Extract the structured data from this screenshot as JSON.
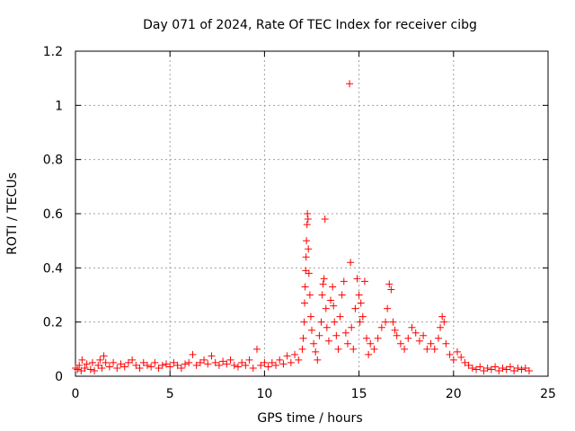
{
  "chart_data": {
    "type": "scatter",
    "title": "Day 071 of 2024, Rate Of TEC Index for receiver cibg",
    "xlabel": "GPS time / hours",
    "ylabel": "ROTI / TECUs",
    "xlim": [
      0,
      25
    ],
    "ylim": [
      0,
      1.2
    ],
    "xticks": [
      0,
      5,
      10,
      15,
      20,
      25
    ],
    "xtick_labels": [
      "0",
      "5",
      "10",
      "15",
      "20",
      "25"
    ],
    "yticks": [
      0,
      0.2,
      0.4,
      0.6,
      0.8,
      1,
      1.2
    ],
    "ytick_labels": [
      "0",
      "0.2",
      "0.4",
      "0.6",
      "0.8",
      "1",
      "1.2"
    ],
    "grid": true,
    "marker": "+",
    "color": "#ff0000",
    "series": [
      {
        "points": [
          [
            0.0,
            0.03
          ],
          [
            0.1,
            0.025
          ],
          [
            0.2,
            0.04
          ],
          [
            0.3,
            0.02
          ],
          [
            0.35,
            0.06
          ],
          [
            0.5,
            0.03
          ],
          [
            0.6,
            0.045
          ],
          [
            0.8,
            0.025
          ],
          [
            0.9,
            0.05
          ],
          [
            1.0,
            0.02
          ],
          [
            1.2,
            0.04
          ],
          [
            1.3,
            0.06
          ],
          [
            1.4,
            0.03
          ],
          [
            1.5,
            0.075
          ],
          [
            1.6,
            0.05
          ],
          [
            1.8,
            0.035
          ],
          [
            2.0,
            0.05
          ],
          [
            2.2,
            0.03
          ],
          [
            2.4,
            0.045
          ],
          [
            2.6,
            0.035
          ],
          [
            2.8,
            0.05
          ],
          [
            3.0,
            0.06
          ],
          [
            3.2,
            0.04
          ],
          [
            3.4,
            0.03
          ],
          [
            3.6,
            0.05
          ],
          [
            3.8,
            0.04
          ],
          [
            4.0,
            0.035
          ],
          [
            4.2,
            0.05
          ],
          [
            4.4,
            0.03
          ],
          [
            4.6,
            0.04
          ],
          [
            4.8,
            0.045
          ],
          [
            5.0,
            0.035
          ],
          [
            5.2,
            0.05
          ],
          [
            5.4,
            0.04
          ],
          [
            5.6,
            0.03
          ],
          [
            5.8,
            0.045
          ],
          [
            6.0,
            0.05
          ],
          [
            6.2,
            0.08
          ],
          [
            6.4,
            0.04
          ],
          [
            6.6,
            0.05
          ],
          [
            6.8,
            0.06
          ],
          [
            7.0,
            0.045
          ],
          [
            7.2,
            0.075
          ],
          [
            7.4,
            0.05
          ],
          [
            7.6,
            0.04
          ],
          [
            7.8,
            0.055
          ],
          [
            8.0,
            0.045
          ],
          [
            8.2,
            0.06
          ],
          [
            8.4,
            0.04
          ],
          [
            8.6,
            0.035
          ],
          [
            8.8,
            0.05
          ],
          [
            9.0,
            0.04
          ],
          [
            9.2,
            0.06
          ],
          [
            9.4,
            0.03
          ],
          [
            9.6,
            0.1
          ],
          [
            9.8,
            0.04
          ],
          [
            10.0,
            0.05
          ],
          [
            10.2,
            0.035
          ],
          [
            10.4,
            0.05
          ],
          [
            10.6,
            0.04
          ],
          [
            10.8,
            0.06
          ],
          [
            11.0,
            0.045
          ],
          [
            11.2,
            0.075
          ],
          [
            11.4,
            0.05
          ],
          [
            11.6,
            0.08
          ],
          [
            11.8,
            0.06
          ],
          [
            12.0,
            0.1
          ],
          [
            12.05,
            0.14
          ],
          [
            12.1,
            0.2
          ],
          [
            12.12,
            0.27
          ],
          [
            12.15,
            0.33
          ],
          [
            12.18,
            0.39
          ],
          [
            12.2,
            0.44
          ],
          [
            12.22,
            0.5
          ],
          [
            12.25,
            0.56
          ],
          [
            12.27,
            0.6
          ],
          [
            12.3,
            0.58
          ],
          [
            12.32,
            0.47
          ],
          [
            12.35,
            0.38
          ],
          [
            12.4,
            0.3
          ],
          [
            12.45,
            0.22
          ],
          [
            12.5,
            0.17
          ],
          [
            12.6,
            0.12
          ],
          [
            12.7,
            0.09
          ],
          [
            12.8,
            0.06
          ],
          [
            12.9,
            0.15
          ],
          [
            13.0,
            0.2
          ],
          [
            13.05,
            0.3
          ],
          [
            13.1,
            0.34
          ],
          [
            13.15,
            0.36
          ],
          [
            13.2,
            0.58
          ],
          [
            13.25,
            0.25
          ],
          [
            13.3,
            0.18
          ],
          [
            13.4,
            0.13
          ],
          [
            13.5,
            0.28
          ],
          [
            13.6,
            0.33
          ],
          [
            13.65,
            0.26
          ],
          [
            13.7,
            0.2
          ],
          [
            13.8,
            0.15
          ],
          [
            13.9,
            0.1
          ],
          [
            14.0,
            0.22
          ],
          [
            14.1,
            0.3
          ],
          [
            14.2,
            0.35
          ],
          [
            14.3,
            0.16
          ],
          [
            14.4,
            0.12
          ],
          [
            14.5,
            1.08
          ],
          [
            14.55,
            0.42
          ],
          [
            14.6,
            0.18
          ],
          [
            14.7,
            0.1
          ],
          [
            14.8,
            0.25
          ],
          [
            14.9,
            0.36
          ],
          [
            15.0,
            0.3
          ],
          [
            15.05,
            0.2
          ],
          [
            15.1,
            0.27
          ],
          [
            15.2,
            0.22
          ],
          [
            15.3,
            0.35
          ],
          [
            15.4,
            0.14
          ],
          [
            15.5,
            0.08
          ],
          [
            15.6,
            0.12
          ],
          [
            15.8,
            0.1
          ],
          [
            16.0,
            0.14
          ],
          [
            16.2,
            0.18
          ],
          [
            16.4,
            0.2
          ],
          [
            16.5,
            0.25
          ],
          [
            16.6,
            0.34
          ],
          [
            16.7,
            0.32
          ],
          [
            16.8,
            0.2
          ],
          [
            16.9,
            0.17
          ],
          [
            17.0,
            0.15
          ],
          [
            17.2,
            0.12
          ],
          [
            17.4,
            0.1
          ],
          [
            17.6,
            0.14
          ],
          [
            17.8,
            0.18
          ],
          [
            18.0,
            0.16
          ],
          [
            18.2,
            0.13
          ],
          [
            18.4,
            0.15
          ],
          [
            18.6,
            0.1
          ],
          [
            18.8,
            0.12
          ],
          [
            19.0,
            0.1
          ],
          [
            19.2,
            0.14
          ],
          [
            19.3,
            0.18
          ],
          [
            19.4,
            0.22
          ],
          [
            19.5,
            0.2
          ],
          [
            19.6,
            0.12
          ],
          [
            19.8,
            0.08
          ],
          [
            20.0,
            0.06
          ],
          [
            20.2,
            0.09
          ],
          [
            20.4,
            0.07
          ],
          [
            20.6,
            0.05
          ],
          [
            20.8,
            0.04
          ],
          [
            21.0,
            0.03
          ],
          [
            21.2,
            0.025
          ],
          [
            21.4,
            0.035
          ],
          [
            21.6,
            0.02
          ],
          [
            21.8,
            0.03
          ],
          [
            22.0,
            0.025
          ],
          [
            22.2,
            0.035
          ],
          [
            22.4,
            0.02
          ],
          [
            22.6,
            0.03
          ],
          [
            22.8,
            0.025
          ],
          [
            23.0,
            0.035
          ],
          [
            23.2,
            0.02
          ],
          [
            23.4,
            0.03
          ],
          [
            23.6,
            0.025
          ],
          [
            23.8,
            0.03
          ],
          [
            24.0,
            0.02
          ]
        ]
      }
    ]
  }
}
